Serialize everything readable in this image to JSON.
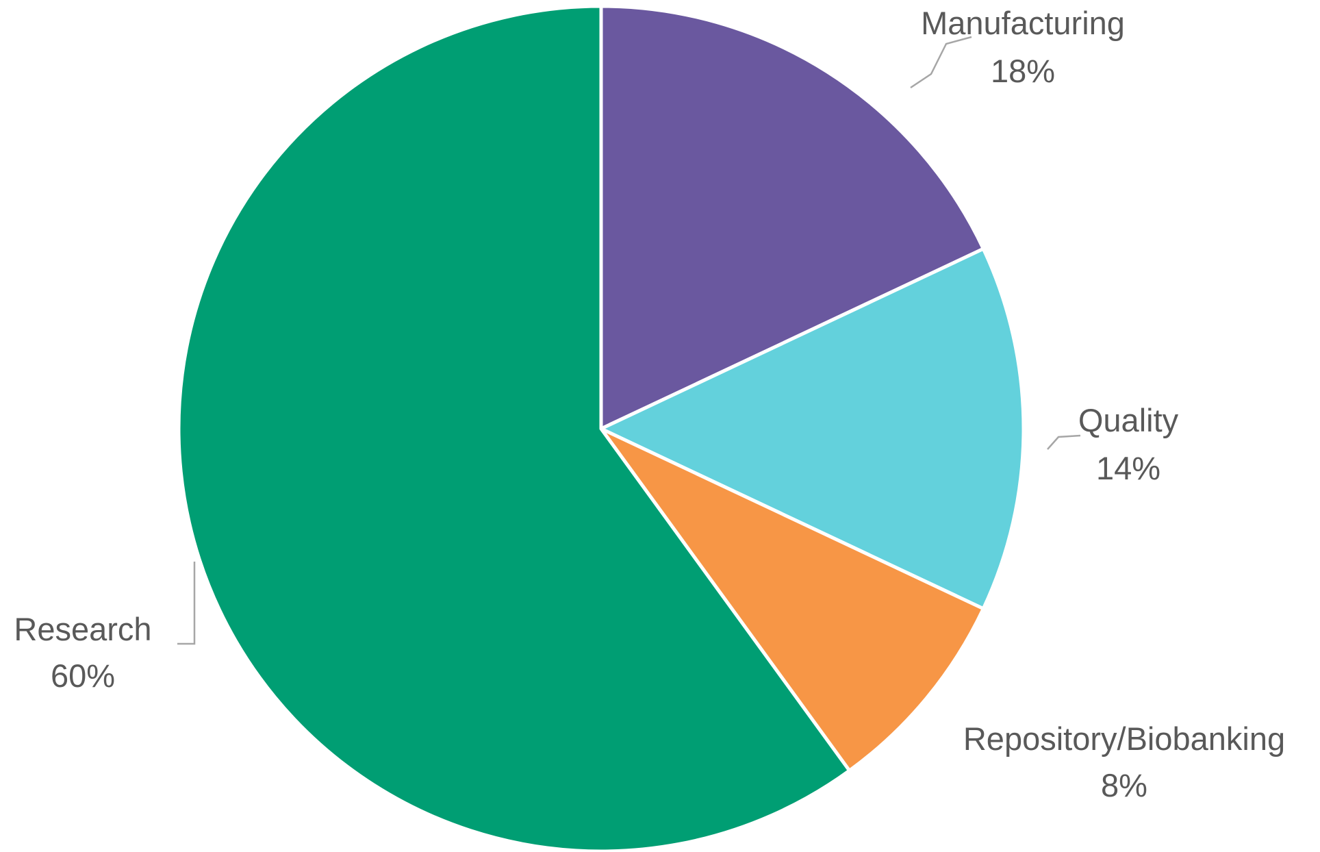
{
  "chart_data": {
    "type": "pie",
    "title": "",
    "start_angle_deg": 0,
    "direction": "clockwise",
    "slice_border_color": "#ffffff",
    "label_color": "#595959",
    "leader_line_color": "#a6a6a6",
    "slices": [
      {
        "label": "Manufacturing",
        "value": 18,
        "value_label": "18%",
        "color": "#6a589f"
      },
      {
        "label": "Quality",
        "value": 14,
        "value_label": "14%",
        "color": "#63d1dc"
      },
      {
        "label": "Repository/Biobanking",
        "value": 8,
        "value_label": "8%",
        "color": "#f79646"
      },
      {
        "label": "Research",
        "value": 60,
        "value_label": "60%",
        "color": "#009e73"
      }
    ]
  }
}
